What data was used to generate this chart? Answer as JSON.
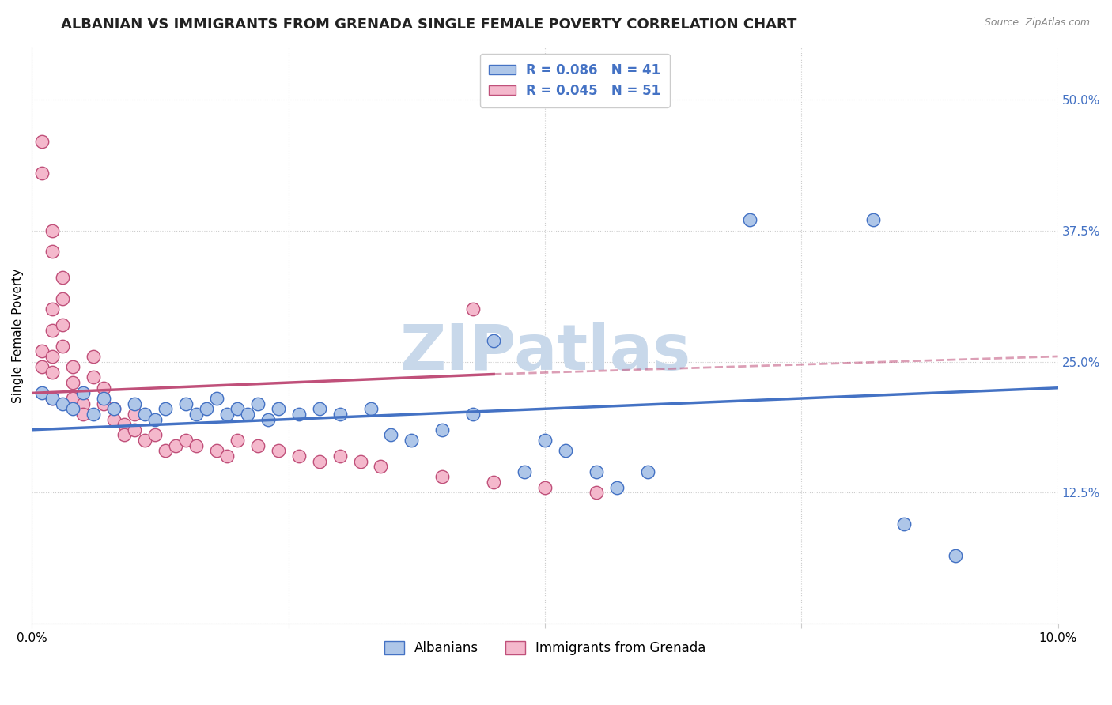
{
  "title": "ALBANIAN VS IMMIGRANTS FROM GRENADA SINGLE FEMALE POVERTY CORRELATION CHART",
  "source": "Source: ZipAtlas.com",
  "ylabel": "Single Female Poverty",
  "xlim": [
    0.0,
    0.1
  ],
  "ylim": [
    0.0,
    0.55
  ],
  "yticks": [
    0.0,
    0.125,
    0.25,
    0.375,
    0.5
  ],
  "ytick_labels": [
    "",
    "12.5%",
    "25.0%",
    "37.5%",
    "50.0%"
  ],
  "xticks": [
    0.0,
    0.025,
    0.05,
    0.075,
    0.1
  ],
  "xtick_labels": [
    "0.0%",
    "",
    "",
    "",
    "10.0%"
  ],
  "watermark": "ZIPatlas",
  "legend_blue_label": "R = 0.086   N = 41",
  "legend_pink_label": "R = 0.045   N = 51",
  "blue_scatter": [
    [
      0.001,
      0.22
    ],
    [
      0.002,
      0.215
    ],
    [
      0.003,
      0.21
    ],
    [
      0.004,
      0.205
    ],
    [
      0.005,
      0.22
    ],
    [
      0.006,
      0.2
    ],
    [
      0.007,
      0.215
    ],
    [
      0.008,
      0.205
    ],
    [
      0.01,
      0.21
    ],
    [
      0.011,
      0.2
    ],
    [
      0.012,
      0.195
    ],
    [
      0.013,
      0.205
    ],
    [
      0.015,
      0.21
    ],
    [
      0.016,
      0.2
    ],
    [
      0.017,
      0.205
    ],
    [
      0.018,
      0.215
    ],
    [
      0.019,
      0.2
    ],
    [
      0.02,
      0.205
    ],
    [
      0.021,
      0.2
    ],
    [
      0.022,
      0.21
    ],
    [
      0.023,
      0.195
    ],
    [
      0.024,
      0.205
    ],
    [
      0.026,
      0.2
    ],
    [
      0.028,
      0.205
    ],
    [
      0.03,
      0.2
    ],
    [
      0.033,
      0.205
    ],
    [
      0.035,
      0.18
    ],
    [
      0.037,
      0.175
    ],
    [
      0.04,
      0.185
    ],
    [
      0.043,
      0.2
    ],
    [
      0.045,
      0.27
    ],
    [
      0.048,
      0.145
    ],
    [
      0.05,
      0.175
    ],
    [
      0.052,
      0.165
    ],
    [
      0.055,
      0.145
    ],
    [
      0.057,
      0.13
    ],
    [
      0.06,
      0.145
    ],
    [
      0.07,
      0.385
    ],
    [
      0.082,
      0.385
    ],
    [
      0.085,
      0.095
    ],
    [
      0.09,
      0.065
    ]
  ],
  "pink_scatter": [
    [
      0.001,
      0.26
    ],
    [
      0.001,
      0.245
    ],
    [
      0.001,
      0.43
    ],
    [
      0.001,
      0.46
    ],
    [
      0.002,
      0.375
    ],
    [
      0.002,
      0.355
    ],
    [
      0.002,
      0.3
    ],
    [
      0.002,
      0.28
    ],
    [
      0.002,
      0.255
    ],
    [
      0.002,
      0.24
    ],
    [
      0.002,
      0.215
    ],
    [
      0.003,
      0.33
    ],
    [
      0.003,
      0.31
    ],
    [
      0.003,
      0.285
    ],
    [
      0.003,
      0.265
    ],
    [
      0.004,
      0.245
    ],
    [
      0.004,
      0.23
    ],
    [
      0.004,
      0.215
    ],
    [
      0.005,
      0.21
    ],
    [
      0.005,
      0.2
    ],
    [
      0.006,
      0.255
    ],
    [
      0.006,
      0.235
    ],
    [
      0.007,
      0.225
    ],
    [
      0.007,
      0.21
    ],
    [
      0.008,
      0.205
    ],
    [
      0.008,
      0.195
    ],
    [
      0.009,
      0.19
    ],
    [
      0.009,
      0.18
    ],
    [
      0.01,
      0.2
    ],
    [
      0.01,
      0.185
    ],
    [
      0.011,
      0.175
    ],
    [
      0.012,
      0.18
    ],
    [
      0.013,
      0.165
    ],
    [
      0.014,
      0.17
    ],
    [
      0.015,
      0.175
    ],
    [
      0.016,
      0.17
    ],
    [
      0.018,
      0.165
    ],
    [
      0.019,
      0.16
    ],
    [
      0.02,
      0.175
    ],
    [
      0.022,
      0.17
    ],
    [
      0.024,
      0.165
    ],
    [
      0.026,
      0.16
    ],
    [
      0.028,
      0.155
    ],
    [
      0.03,
      0.16
    ],
    [
      0.032,
      0.155
    ],
    [
      0.034,
      0.15
    ],
    [
      0.04,
      0.14
    ],
    [
      0.043,
      0.3
    ],
    [
      0.045,
      0.135
    ],
    [
      0.05,
      0.13
    ],
    [
      0.055,
      0.125
    ]
  ],
  "blue_line": {
    "x0": 0.0,
    "y0": 0.185,
    "x1": 0.1,
    "y1": 0.225
  },
  "pink_line_solid_x0": 0.0,
  "pink_line_solid_y0": 0.22,
  "pink_line_solid_x1": 0.045,
  "pink_line_solid_y1": 0.238,
  "pink_line_dashed_x0": 0.045,
  "pink_line_dashed_y0": 0.238,
  "pink_line_dashed_x1": 0.1,
  "pink_line_dashed_y1": 0.255,
  "blue_color": "#4472c4",
  "blue_scatter_color": "#aec6e8",
  "pink_color": "#c0507a",
  "pink_scatter_color": "#f4b8cc",
  "grid_color": "#cccccc",
  "background_color": "#ffffff",
  "watermark_color": "#c8d8ea",
  "right_axis_label_color": "#4472c4",
  "title_fontsize": 13,
  "axis_label_fontsize": 11,
  "tick_fontsize": 11
}
